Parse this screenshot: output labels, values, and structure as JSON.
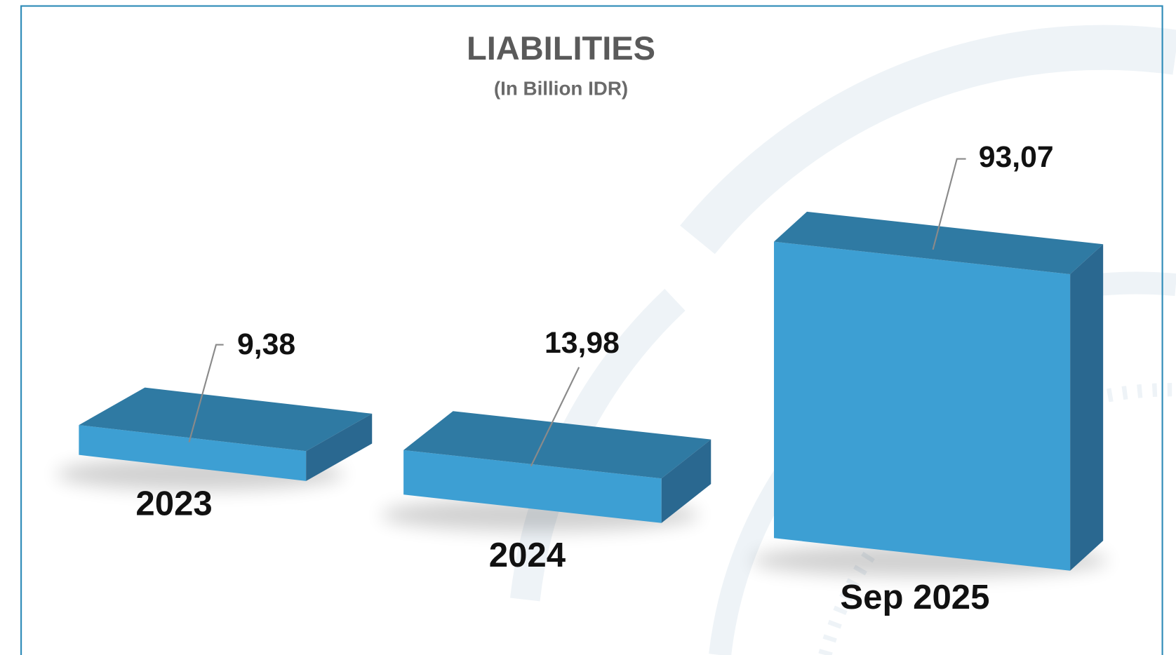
{
  "chart_data": {
    "type": "bar3d",
    "title": "LIABILITIES",
    "subtitle": "(In Billion IDR)",
    "categories": [
      "2023",
      "2024",
      "Sep 2025"
    ],
    "values": [
      9.38,
      13.98,
      93.07
    ],
    "value_labels": [
      "9,38",
      "13,98",
      "93,07"
    ],
    "color": "#3d9fd3"
  }
}
